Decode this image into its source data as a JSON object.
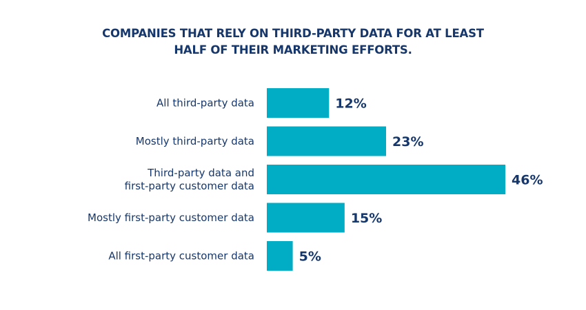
{
  "chart_data": {
    "type": "bar",
    "orientation": "horizontal",
    "title": "COMPANIES THAT RELY ON THIRD-PARTY DATA FOR AT LEAST HALF OF THEIR MARKETING EFFORTS.",
    "title_lines": [
      "COMPANIES THAT RELY ON THIRD-PARTY DATA FOR AT LEAST",
      "HALF OF THEIR MARKETING EFFORTS."
    ],
    "categories": [
      [
        "All third-party data"
      ],
      [
        "Mostly third-party data"
      ],
      [
        "Third-party data and",
        "first-party customer data"
      ],
      [
        "Mostly first-party customer data"
      ],
      [
        "All first-party customer data"
      ]
    ],
    "values": [
      12,
      23,
      46,
      15,
      5
    ],
    "value_labels": [
      "12%",
      "23%",
      "46%",
      "15%",
      "5%"
    ],
    "unit": "%",
    "xlabel": "",
    "ylabel": "",
    "grid": false,
    "legend": "none",
    "bar_color": "#00adc4",
    "text_color": "#16376b"
  }
}
